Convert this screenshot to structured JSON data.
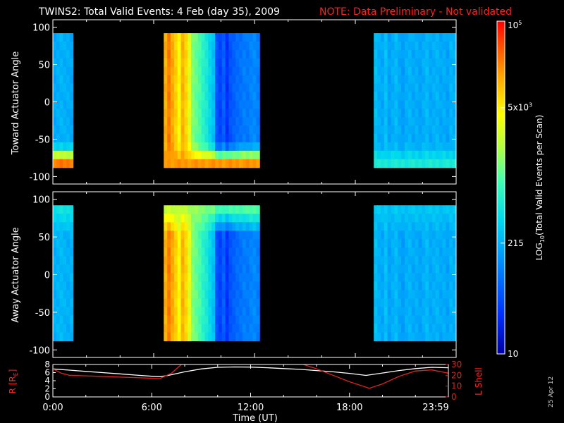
{
  "header": {
    "title": "TWINS2: Total Valid Events:  4 Feb (day  35), 2009",
    "note": "NOTE: Data Preliminary - Not validated"
  },
  "footer": {
    "stamp": "25 Apr 12"
  },
  "colors": {
    "background": "#000000",
    "axes": "#ffffff",
    "note": "#ff2020",
    "lshell": "#e02020",
    "radius": "#ffffff"
  },
  "chart_data": [
    {
      "type": "heatmap",
      "name": "toward",
      "ylabel": "Toward Actuator Angle",
      "xlim": [
        0,
        24
      ],
      "ylim": [
        -110,
        110
      ],
      "yticks": [
        100,
        50,
        0,
        -50,
        -100
      ],
      "data_ylim": [
        -88,
        92
      ],
      "colormap": "rainbow",
      "blocks": [
        {
          "x": [
            0.0,
            1.2
          ],
          "columns": [
            0.32,
            0.33,
            0.34,
            0.33,
            0.33,
            0.32
          ],
          "bottom_hot": 0.88
        },
        {
          "x": [
            6.6,
            12.3
          ],
          "columns": [
            0.82,
            0.88,
            0.83,
            0.78,
            0.72,
            0.82,
            0.77,
            0.68,
            0.58,
            0.55,
            0.52,
            0.48,
            0.45,
            0.4,
            0.36,
            0.18,
            0.15,
            0.2,
            0.12,
            0.18,
            0.2,
            0.22,
            0.23,
            0.25,
            0.24,
            0.26,
            0.27,
            0.25
          ],
          "bottom_hot": 0.85
        },
        {
          "x": [
            19.1,
            24.0
          ],
          "columns": [
            0.36,
            0.33,
            0.32,
            0.36,
            0.31,
            0.33,
            0.35,
            0.32,
            0.3,
            0.33,
            0.34,
            0.32,
            0.33,
            0.31,
            0.33,
            0.35,
            0.32,
            0.33,
            0.34,
            0.32,
            0.33,
            0.31,
            0.34,
            0.33
          ],
          "bottom_hot": 0.45
        }
      ]
    },
    {
      "type": "heatmap",
      "name": "away",
      "ylabel": "Away Actuator Angle",
      "xlim": [
        0,
        24
      ],
      "ylim": [
        -110,
        110
      ],
      "yticks": [
        100,
        50,
        0,
        -50,
        -100
      ],
      "data_ylim": [
        -88,
        92
      ],
      "colormap": "rainbow",
      "blocks": [
        {
          "x": [
            0.0,
            1.2
          ],
          "columns": [
            0.33,
            0.34,
            0.35,
            0.34,
            0.33,
            0.34
          ],
          "top_warm": 0.45
        },
        {
          "x": [
            6.6,
            12.3
          ],
          "columns": [
            0.82,
            0.88,
            0.83,
            0.78,
            0.72,
            0.82,
            0.77,
            0.68,
            0.58,
            0.55,
            0.52,
            0.48,
            0.45,
            0.4,
            0.36,
            0.18,
            0.15,
            0.2,
            0.12,
            0.18,
            0.2,
            0.22,
            0.23,
            0.25,
            0.24,
            0.26,
            0.27,
            0.25
          ],
          "top_warm": 0.6
        },
        {
          "x": [
            19.1,
            24.0
          ],
          "columns": [
            0.36,
            0.33,
            0.32,
            0.36,
            0.31,
            0.33,
            0.35,
            0.32,
            0.3,
            0.33,
            0.34,
            0.32,
            0.33,
            0.31,
            0.33,
            0.35,
            0.32,
            0.33,
            0.34,
            0.32,
            0.33,
            0.31,
            0.34,
            0.33
          ],
          "top_warm": 0.38
        }
      ]
    },
    {
      "type": "line",
      "name": "orbit",
      "xlabel": "Time (UT)",
      "xticks": [
        0,
        6,
        12,
        18,
        23.983
      ],
      "xticklabels": [
        "0:00",
        "6:00",
        "12:00",
        "18:00",
        "23:59"
      ],
      "xlim": [
        0,
        24
      ],
      "left_axis": {
        "label": "R [R",
        "label_sub": "E",
        "label_tail": "]",
        "ylim": [
          0,
          8
        ],
        "yticks": [
          0,
          2,
          4,
          6,
          8
        ]
      },
      "right_axis": {
        "label": "L Shell",
        "ylim": [
          0,
          30
        ],
        "yticks": [
          0,
          10,
          20,
          30
        ]
      },
      "series": [
        {
          "name": "R",
          "axis": "left",
          "x": [
            0,
            1,
            2,
            3,
            4,
            5,
            6,
            6.5,
            7,
            8,
            9,
            10,
            11,
            12,
            13,
            14,
            15,
            16,
            17,
            18,
            19,
            20,
            21,
            22,
            23,
            24
          ],
          "y": [
            6.9,
            6.6,
            6.3,
            6.0,
            5.7,
            5.4,
            5.1,
            5.0,
            5.3,
            6.2,
            6.9,
            7.3,
            7.4,
            7.35,
            7.2,
            7.0,
            6.8,
            6.5,
            6.2,
            5.8,
            5.3,
            5.9,
            6.5,
            7.0,
            7.3,
            7.2
          ]
        },
        {
          "name": "L Shell",
          "axis": "right",
          "x": [
            0,
            0.5,
            1,
            6.5,
            7.2,
            7.8
          ],
          "y": [
            26,
            22,
            20,
            17,
            22,
            30
          ]
        },
        {
          "name": "L Shell",
          "axis": "right",
          "x": [
            15.2,
            16,
            17,
            18,
            19.2,
            20,
            21,
            22,
            23,
            24
          ],
          "y": [
            30,
            26,
            20,
            14,
            8,
            12,
            19,
            24,
            25,
            22
          ]
        }
      ]
    }
  ],
  "colorbar": {
    "label_prefix": "LOG",
    "label_sub": "10",
    "label_suffix": "(Total Valid Events per Scan)",
    "ticks": [
      {
        "text": "10",
        "exp": "",
        "frac": 0.0
      },
      {
        "text": "215",
        "exp": "",
        "frac": 0.333
      },
      {
        "text": "5x10",
        "exp": "3",
        "frac": 0.74
      },
      {
        "text": "10",
        "exp": "5",
        "frac": 1.0
      }
    ]
  }
}
